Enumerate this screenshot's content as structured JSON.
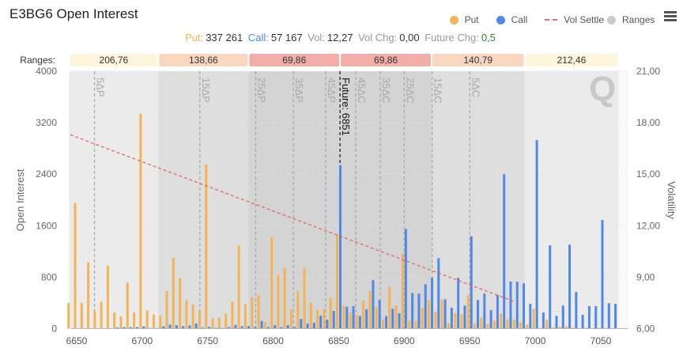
{
  "header": {
    "title": "E3BG6 Open Interest",
    "menu_icon": "hamburger-menu-icon"
  },
  "legend": [
    {
      "label": "Put",
      "color": "#f2b456"
    },
    {
      "label": "Call",
      "color": "#4f88e6"
    },
    {
      "label": "Vol Settle",
      "color": "#e07070"
    },
    {
      "label": "Ranges",
      "color": "#cccccc"
    }
  ],
  "stats": {
    "put_label": "Put:",
    "put_value": "337 261",
    "call_label": "Call:",
    "call_value": "57 167",
    "vol_label": "Vol:",
    "vol_value": "12,27",
    "volchg_label": "Vol Chg:",
    "volchg_value": "0,00",
    "futchg_label": "Future Chg:",
    "futchg_value": "0,5"
  },
  "ranges": {
    "label": "Ranges:",
    "values": [
      "206,76",
      "138,66",
      "69,86",
      "69,86",
      "140,79",
      "212,46"
    ],
    "colors": [
      "#fdf6dc",
      "#f8d6c0",
      "#f3aeaa",
      "#f3aeaa",
      "#f8d6c0",
      "#fdf6dc"
    ],
    "bands": [
      [
        6644.24,
        6712.34,
        "#ebebeb"
      ],
      [
        6712.34,
        6781.14,
        "#dedede"
      ],
      [
        6781.14,
        6851,
        "#d4d4d4"
      ],
      [
        6851,
        6920.86,
        "#d4d4d4"
      ],
      [
        6920.86,
        6991.79,
        "#dedede"
      ],
      [
        6991.79,
        7063.46,
        "#ebebeb"
      ]
    ]
  },
  "logo_text": "Q",
  "chart_data": {
    "type": "bar",
    "xlabel": "",
    "ylabel": "Open Interest",
    "y2label": "Volatility",
    "xlim": [
      6640,
      7068
    ],
    "ylim": [
      0,
      4000
    ],
    "y2lim": [
      6,
      21
    ],
    "xticks": [
      6650,
      6700,
      6750,
      6800,
      6850,
      6900,
      6950,
      7000,
      7050
    ],
    "yticks": [
      0,
      800,
      1600,
      2400,
      3200,
      4000
    ],
    "y2ticks": [
      "6,00",
      "9,00",
      "12,00",
      "15,00",
      "18,00",
      "21,00"
    ],
    "strike_start": 6645,
    "strike_step": 5,
    "series": [
      {
        "name": "Put",
        "color": "#f2b456",
        "values": [
          400,
          1950,
          400,
          1030,
          275,
          420,
          975,
          250,
          190,
          715,
          250,
          3340,
          285,
          220,
          200,
          580,
          1100,
          790,
          435,
          375,
          285,
          2550,
          160,
          170,
          235,
          415,
          1290,
          380,
          490,
          525,
          100,
          1425,
          835,
          945,
          300,
          580,
          945,
          405,
          285,
          310,
          480,
          1465,
          360,
          250,
          210,
          435,
          580,
          335,
          140,
          655,
          360,
          1165,
          125,
          115,
          325,
          445,
          260,
          455,
          85,
          240,
          225,
          520,
          80,
          170,
          80,
          125,
          230,
          140,
          140,
          100,
          65,
          310,
          12,
          140,
          20,
          30,
          40,
          15,
          8,
          15,
          8,
          15,
          8,
          0
        ]
      },
      {
        "name": "Call",
        "color": "#4f88e6",
        "values": [
          0,
          0,
          0,
          0,
          0,
          0,
          0,
          20,
          25,
          25,
          25,
          35,
          10,
          10,
          35,
          60,
          55,
          40,
          50,
          80,
          20,
          30,
          10,
          10,
          25,
          60,
          40,
          40,
          25,
          120,
          25,
          55,
          25,
          55,
          25,
          150,
          80,
          90,
          200,
          140,
          275,
          2540,
          340,
          350,
          195,
          300,
          755,
          445,
          195,
          310,
          240,
          1550,
          555,
          545,
          690,
          790,
          1095,
          455,
          325,
          790,
          360,
          1435,
          445,
          545,
          290,
          525,
          2400,
          730,
          730,
          705,
          385,
          2930,
          250,
          1295,
          200,
          360,
          1305,
          570,
          215,
          350,
          350,
          1690,
          395,
          385
        ]
      }
    ],
    "vol_settle": {
      "name": "Vol Settle",
      "x": [
        6645,
        6985
      ],
      "y": [
        17.3,
        7.55
      ]
    },
    "markers": [
      {
        "label": "5ΔP",
        "x": 6663.6
      },
      {
        "label": "15ΔP",
        "x": 6744
      },
      {
        "label": "25ΔP",
        "x": 6786.6
      },
      {
        "label": "35ΔP",
        "x": 6815.4
      },
      {
        "label": "45ΔP",
        "x": 6840
      },
      {
        "label": "Future: 6851",
        "x": 6851,
        "future": true
      },
      {
        "label": "45ΔC",
        "x": 6863
      },
      {
        "label": "35ΔC",
        "x": 6881.7
      },
      {
        "label": "25ΔC",
        "x": 6900
      },
      {
        "label": "15ΔC",
        "x": 6921.3
      },
      {
        "label": "5ΔC",
        "x": 6950
      }
    ]
  }
}
